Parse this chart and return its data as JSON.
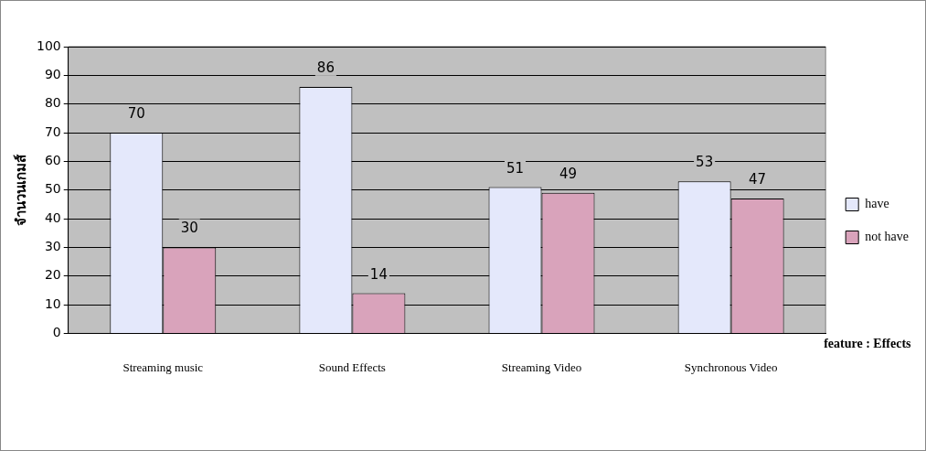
{
  "chart_data": {
    "type": "bar",
    "xlabel": "feature : Effects",
    "ylabel": "จำนวนเกมส์",
    "categories": [
      "Streaming music",
      "Sound Effects",
      "Streaming Video",
      "Synchronous Video"
    ],
    "series": [
      {
        "name": "have",
        "color": "#e4e8fb",
        "values": [
          70,
          86,
          51,
          53
        ]
      },
      {
        "name": "not have",
        "color": "#d9a3bb",
        "values": [
          30,
          14,
          49,
          47
        ]
      }
    ],
    "ylim": [
      0,
      100
    ],
    "yticks": [
      0,
      10,
      20,
      30,
      40,
      50,
      60,
      70,
      80,
      90,
      100
    ],
    "grid": "y",
    "legend": "right",
    "data_labels": true
  }
}
